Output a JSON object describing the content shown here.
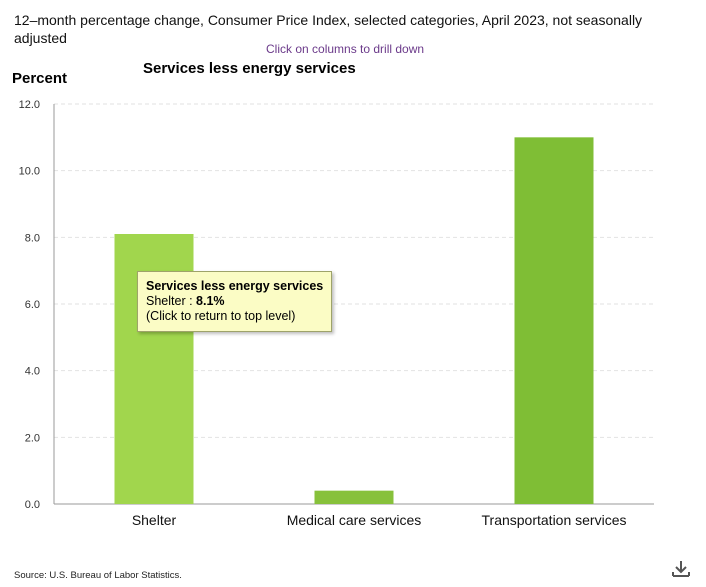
{
  "header": {
    "title": "12–month percentage change, Consumer Price Index, selected categories, April 2023, not seasonally adjusted",
    "drill_hint": "Click on columns to drill down"
  },
  "chart_data": {
    "type": "bar",
    "title": "Services less energy services",
    "ylabel": "Percent",
    "xlabel": "",
    "categories": [
      "Shelter",
      "Medical care services",
      "Transportation services"
    ],
    "values": [
      8.1,
      0.4,
      11.0
    ],
    "ylim": [
      0,
      12
    ],
    "yticks": [
      "0.0",
      "2.0",
      "4.0",
      "6.0",
      "8.0",
      "10.0",
      "12.0"
    ],
    "grid": true,
    "colors": [
      "#a1d64d",
      "#87c13b",
      "#7fbe35"
    ]
  },
  "tooltip": {
    "title": "Services less energy services",
    "label": "Shelter",
    "separator": " : ",
    "value": "8.1%",
    "hint": "(Click to return to top level)"
  },
  "footer": {
    "source": "Source: U.S. Bureau of Labor Statistics.",
    "download_icon": "download-icon"
  }
}
